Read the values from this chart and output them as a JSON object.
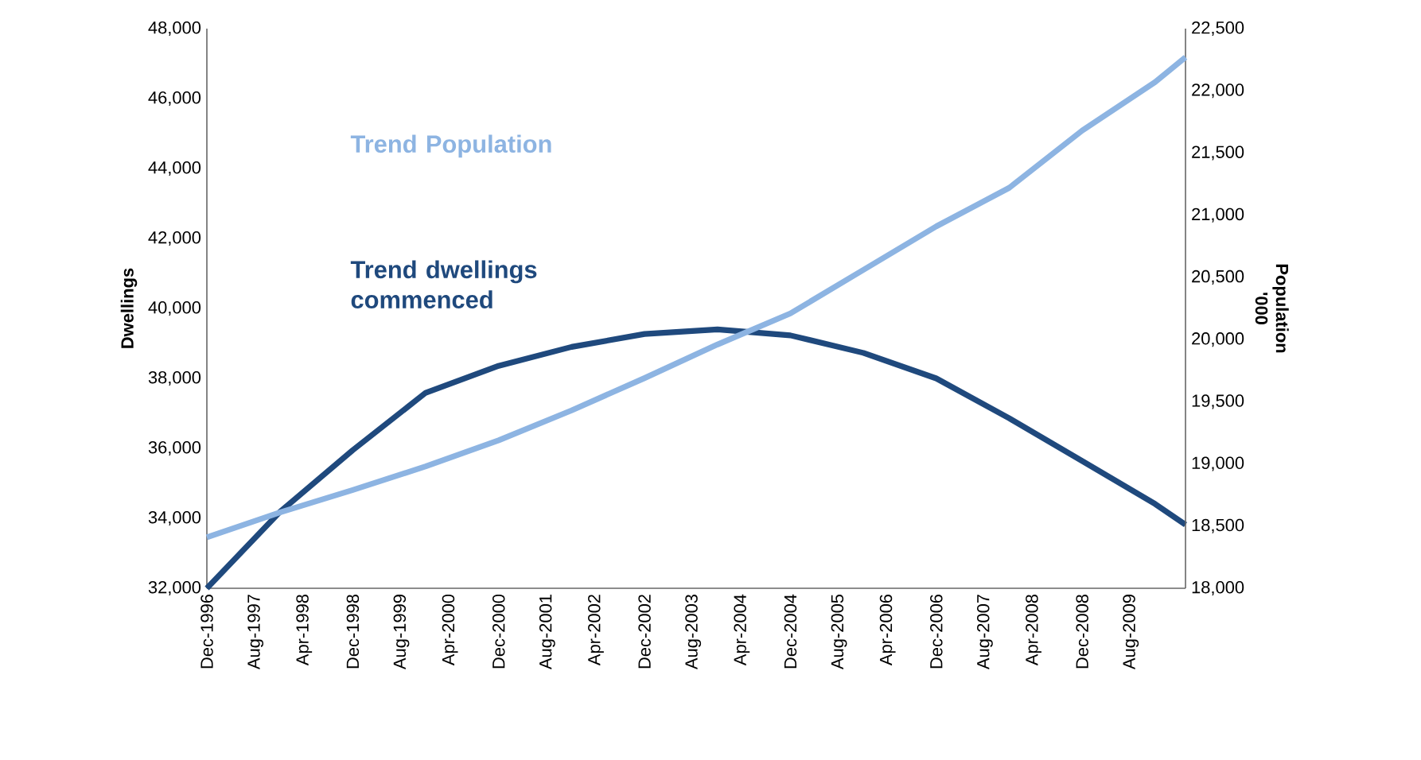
{
  "chart_data": {
    "type": "line",
    "ylabel": "Dwellings",
    "y2label": "Population '000",
    "xlim": [
      "1996-12",
      "2010-05"
    ],
    "xticks": [
      {
        "value": "1996-12",
        "label": "Dec-1996"
      },
      {
        "value": "1997-08",
        "label": "Aug-1997"
      },
      {
        "value": "1998-04",
        "label": "Apr-1998"
      },
      {
        "value": "1998-12",
        "label": "Dec-1998"
      },
      {
        "value": "1999-08",
        "label": "Aug-1999"
      },
      {
        "value": "2000-04",
        "label": "Apr-2000"
      },
      {
        "value": "2000-12",
        "label": "Dec-2000"
      },
      {
        "value": "2001-08",
        "label": "Aug-2001"
      },
      {
        "value": "2002-04",
        "label": "Apr-2002"
      },
      {
        "value": "2002-12",
        "label": "Dec-2002"
      },
      {
        "value": "2003-08",
        "label": "Aug-2003"
      },
      {
        "value": "2004-04",
        "label": "Apr-2004"
      },
      {
        "value": "2004-12",
        "label": "Dec-2004"
      },
      {
        "value": "2005-08",
        "label": "Aug-2005"
      },
      {
        "value": "2006-04",
        "label": "Apr-2006"
      },
      {
        "value": "2006-12",
        "label": "Dec-2006"
      },
      {
        "value": "2007-08",
        "label": "Aug-2007"
      },
      {
        "value": "2008-04",
        "label": "Apr-2008"
      },
      {
        "value": "2008-12",
        "label": "Dec-2008"
      },
      {
        "value": "2009-08",
        "label": "Aug-2009"
      }
    ],
    "ylim": [
      32000,
      48000
    ],
    "yticks": [
      {
        "value": 32000,
        "label": "32,000"
      },
      {
        "value": 34000,
        "label": "34,000"
      },
      {
        "value": 36000,
        "label": "36,000"
      },
      {
        "value": 38000,
        "label": "38,000"
      },
      {
        "value": 40000,
        "label": "40,000"
      },
      {
        "value": 42000,
        "label": "42,000"
      },
      {
        "value": 44000,
        "label": "44,000"
      },
      {
        "value": 46000,
        "label": "46,000"
      },
      {
        "value": 48000,
        "label": "48,000"
      }
    ],
    "y2lim": [
      18000,
      22500
    ],
    "y2ticks": [
      {
        "value": 18000,
        "label": "18,000"
      },
      {
        "value": 18500,
        "label": "18,500"
      },
      {
        "value": 19000,
        "label": "19,000"
      },
      {
        "value": 19500,
        "label": "19,500"
      },
      {
        "value": 20000,
        "label": "20,000"
      },
      {
        "value": 20500,
        "label": "20,500"
      },
      {
        "value": 21000,
        "label": "21,000"
      },
      {
        "value": 21500,
        "label": "21,500"
      },
      {
        "value": 22000,
        "label": "22,000"
      },
      {
        "value": 22500,
        "label": "22,500"
      }
    ],
    "grid": false,
    "legend": false,
    "marker": "none",
    "line_style": "solid",
    "series": [
      {
        "name": "Trend Population",
        "color": "#8db4e2",
        "axis": "y2",
        "x": [
          "1996-12",
          "1997-12",
          "1998-12",
          "1999-12",
          "2000-12",
          "2001-12",
          "2002-12",
          "2003-12",
          "2004-12",
          "2005-12",
          "2006-12",
          "2007-12",
          "2008-12",
          "2009-12",
          "2010-05"
        ],
        "values": [
          18410,
          18610,
          18790,
          18980,
          19190,
          19430,
          19690,
          19960,
          20210,
          20560,
          20910,
          21220,
          21680,
          22070,
          22270
        ]
      },
      {
        "name": "Trend dwellings commenced",
        "color": "#1f497d",
        "x": [
          "1996-12",
          "1997-12",
          "1998-12",
          "1999-12",
          "2000-12",
          "2001-12",
          "2002-12",
          "2003-12",
          "2004-12",
          "2005-12",
          "2006-12",
          "2007-12",
          "2008-12",
          "2009-12",
          "2010-05"
        ],
        "values": [
          32000,
          34180,
          35950,
          37590,
          38360,
          38900,
          39270,
          39400,
          39230,
          38730,
          38000,
          36860,
          35640,
          34410,
          33820
        ]
      }
    ]
  }
}
